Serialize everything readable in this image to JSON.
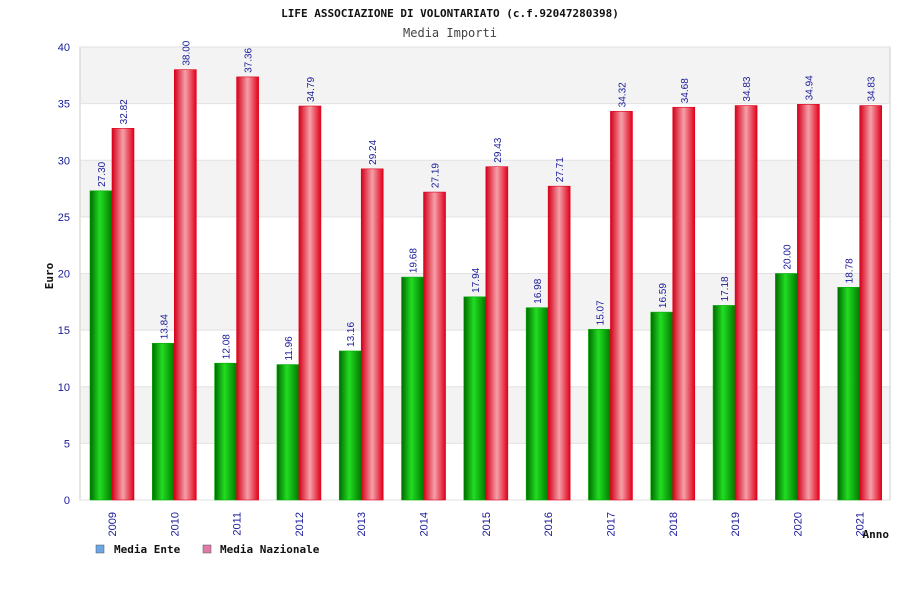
{
  "colors": {
    "series_ente": "#00b000",
    "series_nazionale": "#e0001a",
    "legend_ente": "#6aa6e8",
    "legend_nazionale": "#e07aa8",
    "band": "#f3f3f3",
    "axis_text": "#1a1a9a"
  },
  "chart_data": {
    "type": "bar",
    "title": "LIFE ASSOCIAZIONE DI VOLONTARIATO (c.f.92047280398)",
    "subtitle": "Media Importi",
    "xlabel": "Anno",
    "ylabel": "Euro",
    "ylim": [
      0,
      40
    ],
    "yticks": [
      0,
      5,
      10,
      15,
      20,
      25,
      30,
      35,
      40
    ],
    "grid": true,
    "legend_position": "bottom-left",
    "categories": [
      "2009",
      "2010",
      "2011",
      "2012",
      "2013",
      "2014",
      "2015",
      "2016",
      "2017",
      "2018",
      "2019",
      "2020",
      "2021"
    ],
    "series": [
      {
        "name": "Media Ente",
        "values": [
          27.3,
          13.84,
          12.08,
          11.96,
          13.16,
          19.68,
          17.94,
          16.98,
          15.07,
          16.59,
          17.18,
          20.0,
          18.78
        ],
        "labels": [
          "27.30",
          "13.84",
          "12.08",
          "11.96",
          "13.16",
          "19.68",
          "17.94",
          "16.98",
          "15.07",
          "16.59",
          "17.18",
          "20.00",
          "18.78"
        ]
      },
      {
        "name": "Media Nazionale",
        "values": [
          32.82,
          38.0,
          37.36,
          34.79,
          29.24,
          27.19,
          29.43,
          27.71,
          34.32,
          34.68,
          34.83,
          34.94,
          34.83
        ],
        "labels": [
          "32.82",
          "38.00",
          "37.36",
          "34.79",
          "29.24",
          "27.19",
          "29.43",
          "27.71",
          "34.32",
          "34.68",
          "34.83",
          "34.94",
          "34.83"
        ]
      }
    ]
  }
}
